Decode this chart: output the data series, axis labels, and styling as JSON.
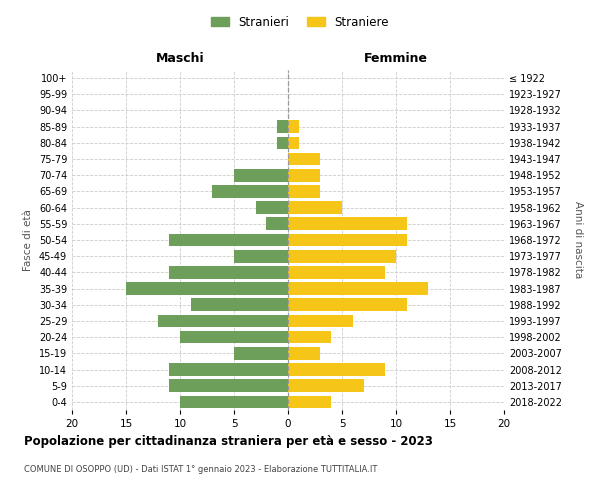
{
  "age_groups": [
    "0-4",
    "5-9",
    "10-14",
    "15-19",
    "20-24",
    "25-29",
    "30-34",
    "35-39",
    "40-44",
    "45-49",
    "50-54",
    "55-59",
    "60-64",
    "65-69",
    "70-74",
    "75-79",
    "80-84",
    "85-89",
    "90-94",
    "95-99",
    "100+"
  ],
  "birth_years": [
    "2018-2022",
    "2013-2017",
    "2008-2012",
    "2003-2007",
    "1998-2002",
    "1993-1997",
    "1988-1992",
    "1983-1987",
    "1978-1982",
    "1973-1977",
    "1968-1972",
    "1963-1967",
    "1958-1962",
    "1953-1957",
    "1948-1952",
    "1943-1947",
    "1938-1942",
    "1933-1937",
    "1928-1932",
    "1923-1927",
    "≤ 1922"
  ],
  "maschi": [
    10,
    11,
    11,
    5,
    10,
    12,
    9,
    15,
    11,
    5,
    11,
    2,
    3,
    7,
    5,
    0,
    1,
    1,
    0,
    0,
    0
  ],
  "femmine": [
    4,
    7,
    9,
    3,
    4,
    6,
    11,
    13,
    9,
    10,
    11,
    11,
    5,
    3,
    3,
    3,
    1,
    1,
    0,
    0,
    0
  ],
  "maschi_color": "#6d9e5a",
  "femmine_color": "#f5c518",
  "title": "Popolazione per cittadinanza straniera per età e sesso - 2023",
  "subtitle": "COMUNE DI OSOPPO (UD) - Dati ISTAT 1° gennaio 2023 - Elaborazione TUTTITALIA.IT",
  "xlabel_left": "Maschi",
  "xlabel_right": "Femmine",
  "ylabel_left": "Fasce di età",
  "ylabel_right": "Anni di nascita",
  "legend_stranieri": "Stranieri",
  "legend_straniere": "Straniere",
  "xlim": 20,
  "background_color": "#ffffff",
  "grid_color": "#cccccc"
}
